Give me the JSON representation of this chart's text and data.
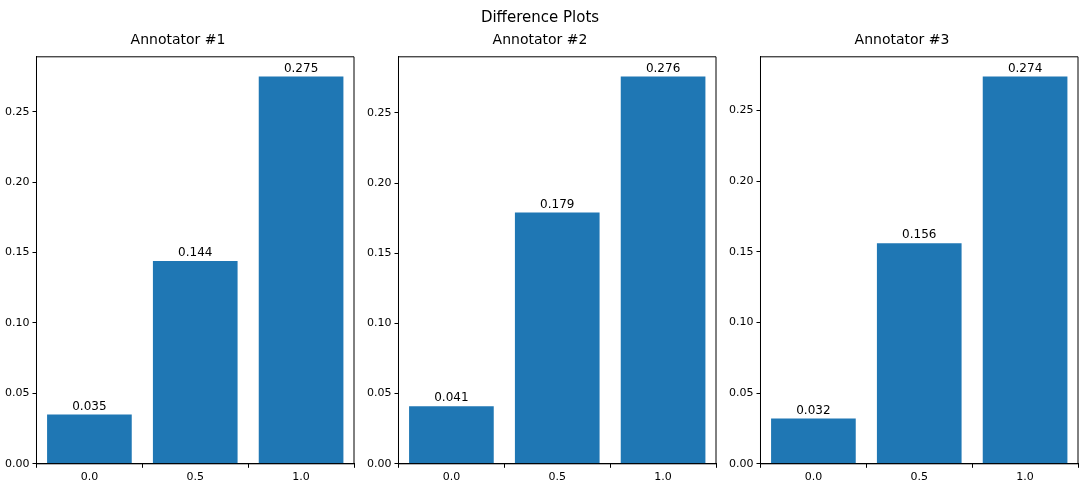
{
  "chart_data": [
    {
      "type": "other",
      "title": "Difference Plots"
    },
    {
      "type": "bar",
      "title": "Annotator #1",
      "categories": [
        "0.0",
        "0.5",
        "1.0"
      ],
      "values": [
        0.035,
        0.144,
        0.275
      ],
      "color": "#1f77b4",
      "ylim": [
        0,
        0.289
      ],
      "yticks": [
        {
          "value": 0,
          "label": "0.00"
        },
        0.05,
        {
          "value": 0.1,
          "label": "0.10"
        },
        0.15,
        {
          "value": 0.2,
          "label": "0.20"
        },
        0.25
      ],
      "data_labels": true,
      "grid": false,
      "legend": false
    },
    {
      "type": "bar",
      "title": "Annotator #2",
      "categories": [
        "0.0",
        "0.5",
        "1.0"
      ],
      "values": [
        0.041,
        0.179,
        0.276
      ],
      "color": "#1f77b4",
      "ylim": [
        0,
        0.29
      ],
      "yticks": [
        {
          "value": 0,
          "label": "0.00"
        },
        0.05,
        {
          "value": 0.1,
          "label": "0.10"
        },
        0.15,
        {
          "value": 0.2,
          "label": "0.20"
        },
        0.25
      ],
      "data_labels": true,
      "grid": false,
      "legend": false
    },
    {
      "type": "bar",
      "title": "Annotator #3",
      "categories": [
        "0.0",
        "0.5",
        "1.0"
      ],
      "values": [
        0.032,
        0.156,
        0.274
      ],
      "color": "#1f77b4",
      "ylim": [
        0,
        0.288
      ],
      "yticks": [
        {
          "value": 0,
          "label": "0.00"
        },
        0.05,
        {
          "value": 0.1,
          "label": "0.10"
        },
        0.15,
        {
          "value": 0.2,
          "label": "0.20"
        },
        0.25
      ],
      "data_labels": true,
      "grid": false,
      "legend": false
    }
  ]
}
